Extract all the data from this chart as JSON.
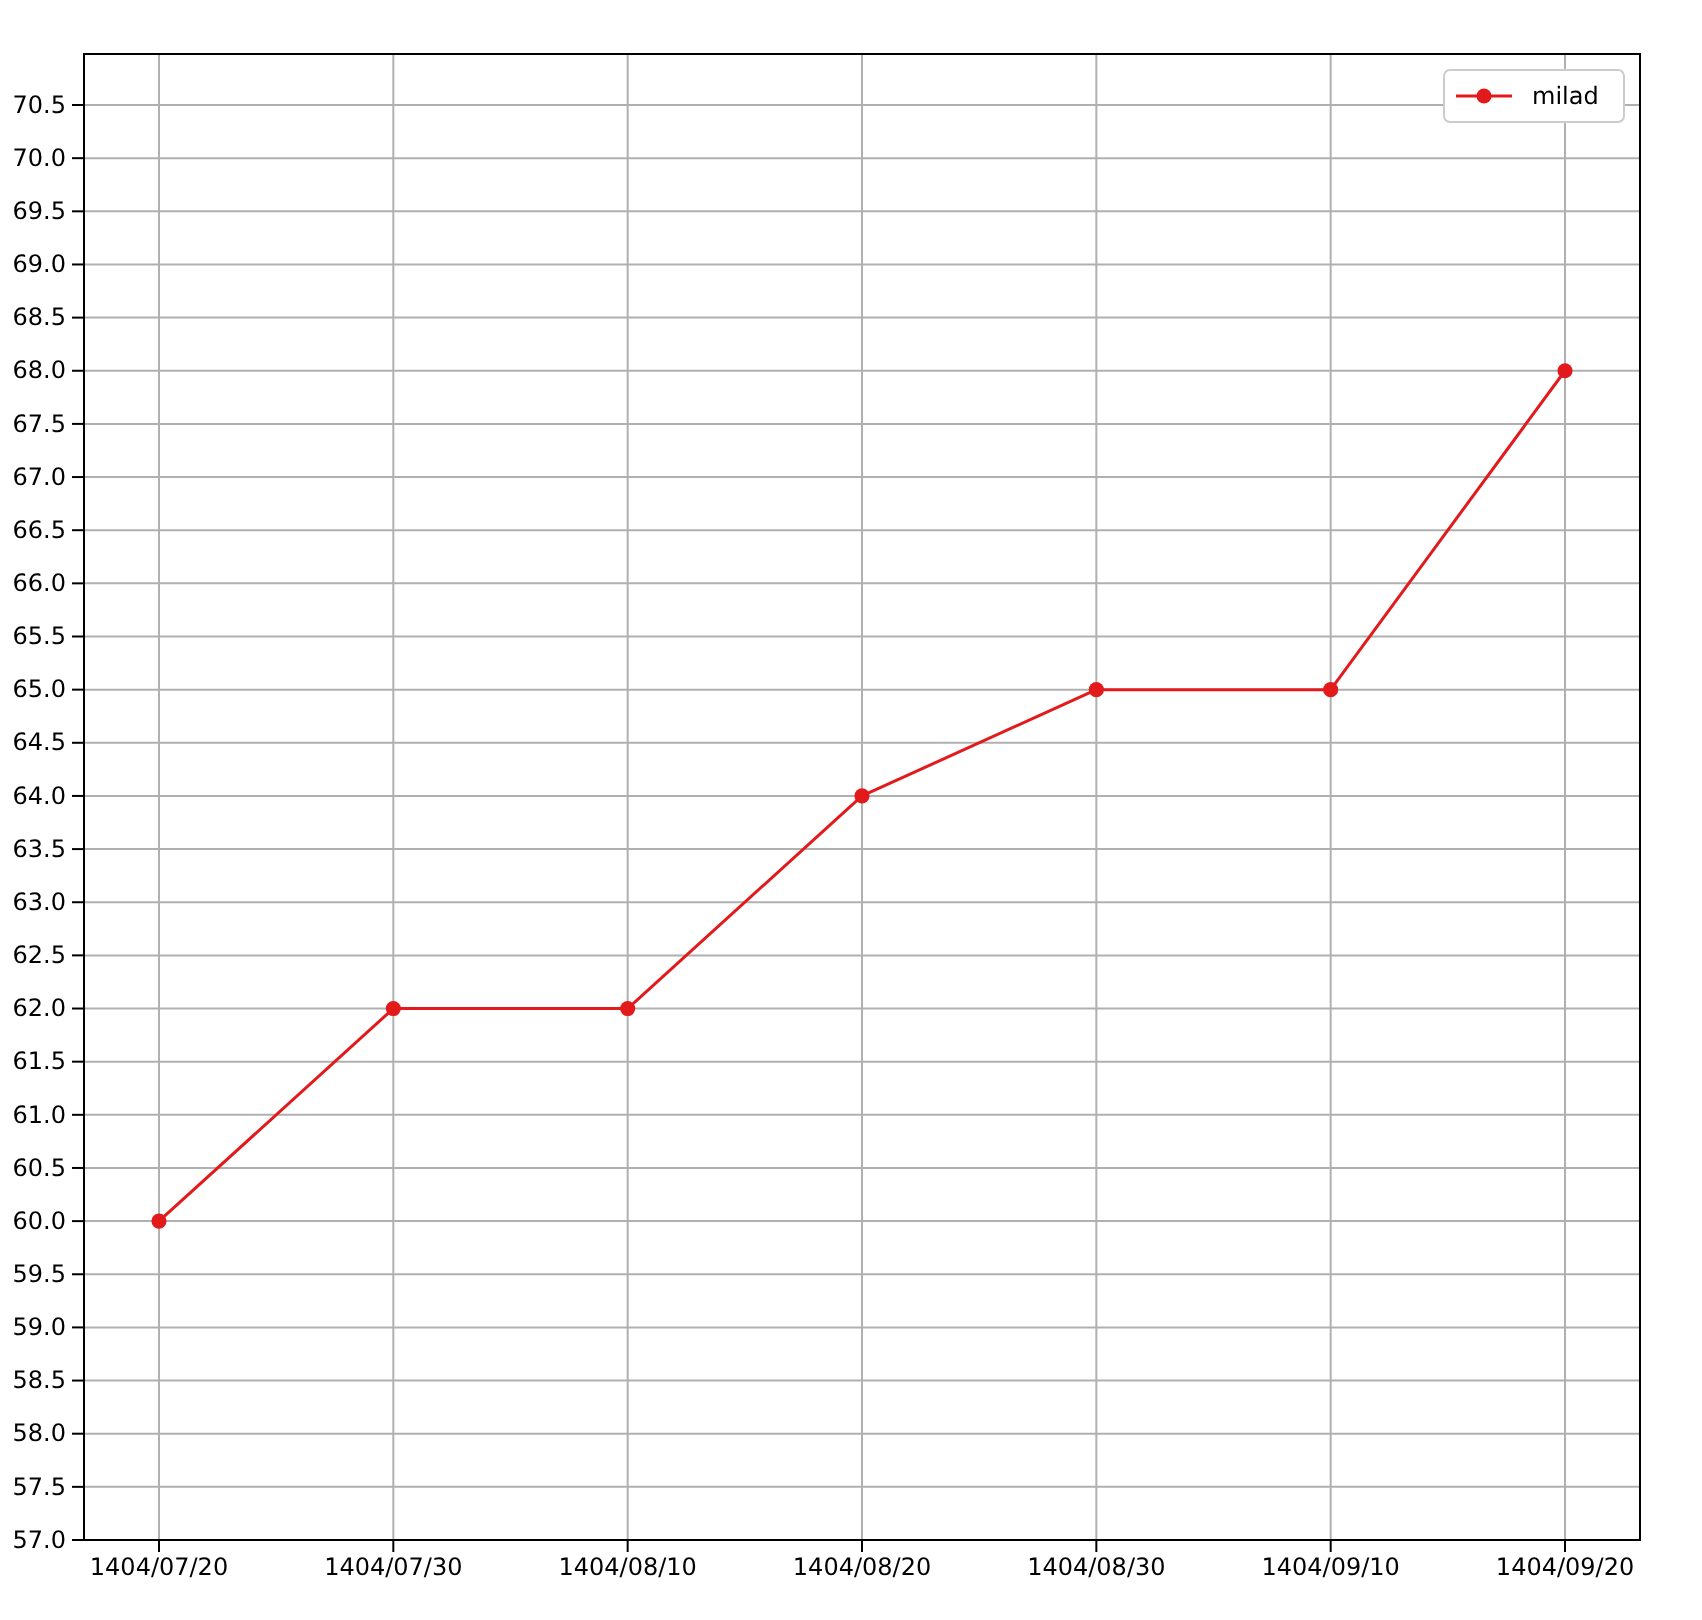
{
  "chart_data": {
    "type": "line",
    "categories": [
      "1404/07/20",
      "1404/07/30",
      "1404/08/10",
      "1404/08/20",
      "1404/08/30",
      "1404/09/10",
      "1404/09/20"
    ],
    "series": [
      {
        "name": "milad",
        "color": "#e31a1c",
        "values": [
          60,
          62,
          62,
          64,
          65,
          65,
          68
        ]
      }
    ],
    "ylim": [
      57,
      70.98
    ],
    "yticks": [
      {
        "value": 57,
        "label": "57.0"
      },
      {
        "value": 57.5,
        "label": "57.5"
      },
      {
        "value": 58,
        "label": "58.0"
      },
      {
        "value": 58.5,
        "label": "58.5"
      },
      {
        "value": 59,
        "label": "59.0"
      },
      {
        "value": 59.5,
        "label": "59.5"
      },
      {
        "value": 60,
        "label": "60.0"
      },
      {
        "value": 60.5,
        "label": "60.5"
      },
      {
        "value": 61,
        "label": "61.0"
      },
      {
        "value": 61.5,
        "label": "61.5"
      },
      {
        "value": 62,
        "label": "62.0"
      },
      {
        "value": 62.5,
        "label": "62.5"
      },
      {
        "value": 63,
        "label": "63.0"
      },
      {
        "value": 63.5,
        "label": "63.5"
      },
      {
        "value": 64,
        "label": "64.0"
      },
      {
        "value": 64.5,
        "label": "64.5"
      },
      {
        "value": 65,
        "label": "65.0"
      },
      {
        "value": 65.5,
        "label": "65.5"
      },
      {
        "value": 66,
        "label": "66.0"
      },
      {
        "value": 66.5,
        "label": "66.5"
      },
      {
        "value": 67,
        "label": "67.0"
      },
      {
        "value": 67.5,
        "label": "67.5"
      },
      {
        "value": 68,
        "label": "68.0"
      },
      {
        "value": 68.5,
        "label": "68.5"
      },
      {
        "value": 69,
        "label": "69.0"
      },
      {
        "value": 69.5,
        "label": "69.5"
      },
      {
        "value": 70,
        "label": "70.0"
      },
      {
        "value": 70.5,
        "label": "70.5"
      }
    ],
    "grid": true,
    "legend": "top right",
    "marker": "circle",
    "line_style": "solid"
  }
}
